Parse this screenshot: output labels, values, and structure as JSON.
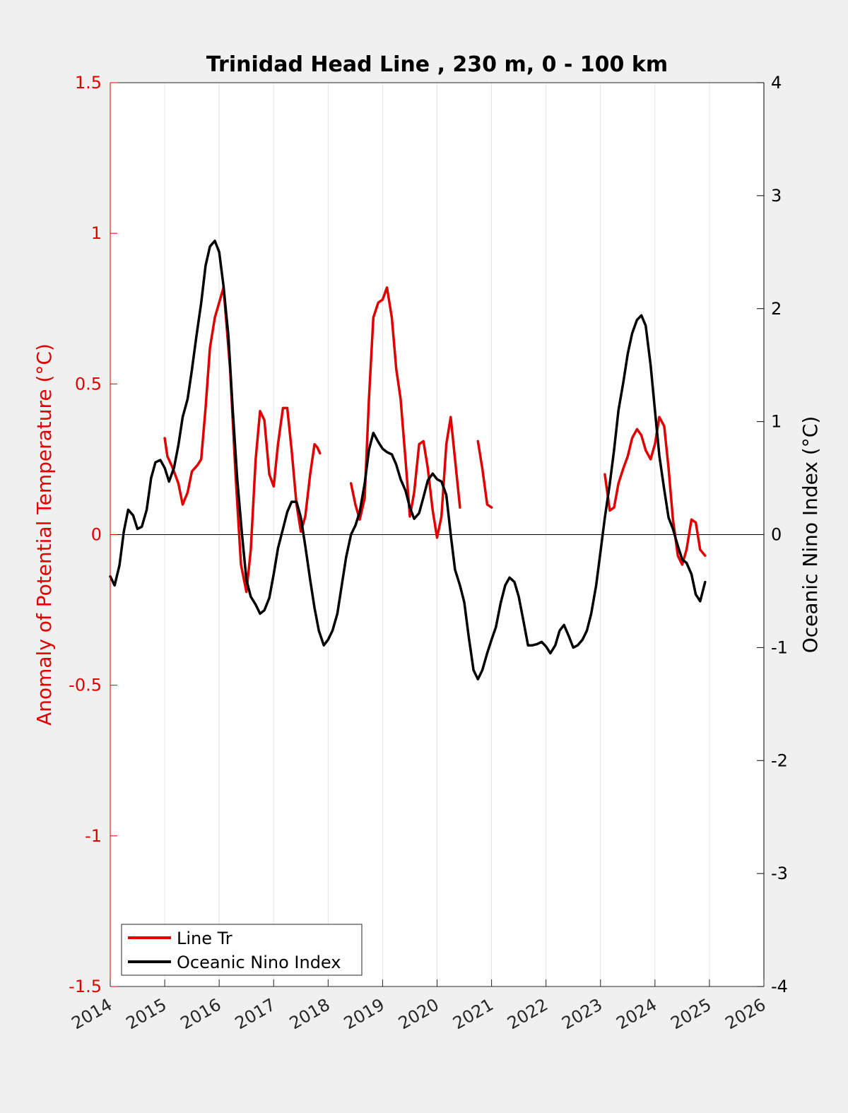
{
  "chart_data": {
    "type": "line",
    "title": "Trinidad Head Line , 230 m, 0 - 100 km",
    "xlabel": "",
    "ylabel": "Anomaly of Potential Temperature (°C)",
    "ylabel_right": "Oceanic Nino Index (°C)",
    "xlim": [
      2014,
      2026
    ],
    "ylim": [
      -1.5,
      1.5
    ],
    "ylim_right": [
      -4,
      4
    ],
    "xticks": [
      "2014",
      "2015",
      "2016",
      "2017",
      "2018",
      "2019",
      "2020",
      "2021",
      "2022",
      "2023",
      "2024",
      "2025",
      "2026"
    ],
    "yticks_left": [
      "-1.5",
      "-1",
      "-0.5",
      "0",
      "0.5",
      "1",
      "1.5"
    ],
    "yticks_right": [
      "-4",
      "-3",
      "-2",
      "-1",
      "0",
      "1",
      "2",
      "3",
      "4"
    ],
    "grid": "vertical",
    "legend": {
      "position": "bottom-left",
      "entries": [
        "Line Tr",
        "Oceanic Nino Index"
      ]
    },
    "colors": {
      "line_tr": "#e00000",
      "oni": "#000000",
      "left_axis": "#e00000",
      "right_axis": "#000000"
    },
    "series": [
      {
        "name": "Line Tr",
        "axis": "left",
        "segments": [
          [
            [
              2015.0,
              0.32
            ],
            [
              2015.05,
              0.26
            ],
            [
              2015.15,
              0.22
            ],
            [
              2015.25,
              0.17
            ],
            [
              2015.33,
              0.1
            ],
            [
              2015.42,
              0.14
            ],
            [
              2015.5,
              0.21
            ],
            [
              2015.6,
              0.23
            ],
            [
              2015.67,
              0.25
            ],
            [
              2015.75,
              0.42
            ],
            [
              2015.83,
              0.62
            ],
            [
              2015.92,
              0.72
            ],
            [
              2016.08,
              0.82
            ],
            [
              2016.2,
              0.55
            ],
            [
              2016.3,
              0.2
            ],
            [
              2016.4,
              -0.1
            ],
            [
              2016.5,
              -0.19
            ],
            [
              2016.58,
              -0.05
            ],
            [
              2016.67,
              0.25
            ],
            [
              2016.75,
              0.41
            ],
            [
              2016.83,
              0.38
            ],
            [
              2016.92,
              0.2
            ],
            [
              2017.0,
              0.16
            ],
            [
              2017.08,
              0.3
            ],
            [
              2017.17,
              0.42
            ],
            [
              2017.25,
              0.42
            ],
            [
              2017.33,
              0.28
            ],
            [
              2017.42,
              0.1
            ],
            [
              2017.5,
              0.01
            ],
            [
              2017.58,
              0.06
            ],
            [
              2017.67,
              0.2
            ],
            [
              2017.75,
              0.3
            ],
            [
              2017.8,
              0.29
            ],
            [
              2017.85,
              0.27
            ]
          ],
          [
            [
              2018.42,
              0.17
            ],
            [
              2018.5,
              0.1
            ],
            [
              2018.58,
              0.05
            ],
            [
              2018.67,
              0.12
            ],
            [
              2018.75,
              0.45
            ],
            [
              2018.83,
              0.72
            ],
            [
              2018.92,
              0.77
            ],
            [
              2019.0,
              0.78
            ],
            [
              2019.08,
              0.82
            ],
            [
              2019.17,
              0.72
            ],
            [
              2019.25,
              0.55
            ],
            [
              2019.33,
              0.45
            ],
            [
              2019.42,
              0.25
            ],
            [
              2019.5,
              0.06
            ],
            [
              2019.58,
              0.14
            ],
            [
              2019.67,
              0.3
            ],
            [
              2019.75,
              0.31
            ],
            [
              2019.83,
              0.22
            ],
            [
              2019.92,
              0.08
            ],
            [
              2020.0,
              -0.01
            ],
            [
              2020.08,
              0.06
            ],
            [
              2020.17,
              0.3
            ],
            [
              2020.25,
              0.39
            ],
            [
              2020.33,
              0.25
            ],
            [
              2020.42,
              0.09
            ]
          ],
          [
            [
              2020.75,
              0.31
            ],
            [
              2020.83,
              0.22
            ],
            [
              2020.92,
              0.1
            ],
            [
              2021.0,
              0.09
            ]
          ],
          [
            [
              2023.08,
              0.2
            ],
            [
              2023.17,
              0.08
            ],
            [
              2023.25,
              0.09
            ],
            [
              2023.33,
              0.17
            ],
            [
              2023.42,
              0.22
            ],
            [
              2023.5,
              0.26
            ],
            [
              2023.58,
              0.32
            ],
            [
              2023.67,
              0.35
            ],
            [
              2023.75,
              0.33
            ],
            [
              2023.83,
              0.28
            ],
            [
              2023.92,
              0.25
            ],
            [
              2024.0,
              0.3
            ],
            [
              2024.08,
              0.39
            ],
            [
              2024.17,
              0.36
            ],
            [
              2024.25,
              0.22
            ],
            [
              2024.33,
              0.05
            ],
            [
              2024.42,
              -0.07
            ],
            [
              2024.5,
              -0.1
            ],
            [
              2024.58,
              -0.05
            ],
            [
              2024.67,
              0.05
            ],
            [
              2024.75,
              0.04
            ],
            [
              2024.83,
              -0.05
            ],
            [
              2024.92,
              -0.07
            ]
          ]
        ]
      },
      {
        "name": "Oceanic Nino Index",
        "axis": "right",
        "segments": [
          [
            [
              2014.0,
              -0.37
            ],
            [
              2014.08,
              -0.45
            ],
            [
              2014.17,
              -0.27
            ],
            [
              2014.25,
              0.03
            ],
            [
              2014.33,
              0.22
            ],
            [
              2014.42,
              0.17
            ],
            [
              2014.5,
              0.05
            ],
            [
              2014.58,
              0.07
            ],
            [
              2014.67,
              0.22
            ],
            [
              2014.75,
              0.5
            ],
            [
              2014.83,
              0.64
            ],
            [
              2014.92,
              0.66
            ],
            [
              2015.0,
              0.59
            ],
            [
              2015.08,
              0.47
            ],
            [
              2015.17,
              0.59
            ],
            [
              2015.25,
              0.79
            ],
            [
              2015.33,
              1.04
            ],
            [
              2015.42,
              1.2
            ],
            [
              2015.5,
              1.46
            ],
            [
              2015.58,
              1.75
            ],
            [
              2015.67,
              2.05
            ],
            [
              2015.75,
              2.38
            ],
            [
              2015.83,
              2.55
            ],
            [
              2015.92,
              2.6
            ],
            [
              2016.0,
              2.5
            ],
            [
              2016.08,
              2.2
            ],
            [
              2016.17,
              1.75
            ],
            [
              2016.25,
              1.1
            ],
            [
              2016.33,
              0.5
            ],
            [
              2016.42,
              0.0
            ],
            [
              2016.5,
              -0.4
            ],
            [
              2016.58,
              -0.55
            ],
            [
              2016.67,
              -0.62
            ],
            [
              2016.75,
              -0.7
            ],
            [
              2016.83,
              -0.67
            ],
            [
              2016.92,
              -0.56
            ],
            [
              2017.0,
              -0.35
            ],
            [
              2017.08,
              -0.12
            ],
            [
              2017.17,
              0.05
            ],
            [
              2017.25,
              0.2
            ],
            [
              2017.33,
              0.29
            ],
            [
              2017.42,
              0.29
            ],
            [
              2017.5,
              0.15
            ],
            [
              2017.58,
              -0.1
            ],
            [
              2017.67,
              -0.4
            ],
            [
              2017.75,
              -0.65
            ],
            [
              2017.83,
              -0.85
            ],
            [
              2017.92,
              -0.98
            ],
            [
              2018.0,
              -0.93
            ],
            [
              2018.08,
              -0.85
            ],
            [
              2018.17,
              -0.7
            ],
            [
              2018.25,
              -0.45
            ],
            [
              2018.33,
              -0.2
            ],
            [
              2018.42,
              0.0
            ],
            [
              2018.5,
              0.08
            ],
            [
              2018.58,
              0.2
            ],
            [
              2018.67,
              0.45
            ],
            [
              2018.75,
              0.75
            ],
            [
              2018.83,
              0.9
            ],
            [
              2018.92,
              0.82
            ],
            [
              2019.0,
              0.76
            ],
            [
              2019.08,
              0.73
            ],
            [
              2019.17,
              0.71
            ],
            [
              2019.25,
              0.62
            ],
            [
              2019.33,
              0.49
            ],
            [
              2019.42,
              0.39
            ],
            [
              2019.5,
              0.24
            ],
            [
              2019.58,
              0.14
            ],
            [
              2019.67,
              0.19
            ],
            [
              2019.75,
              0.33
            ],
            [
              2019.83,
              0.48
            ],
            [
              2019.92,
              0.54
            ],
            [
              2020.0,
              0.49
            ],
            [
              2020.08,
              0.47
            ],
            [
              2020.17,
              0.35
            ],
            [
              2020.25,
              0.0
            ],
            [
              2020.33,
              -0.31
            ],
            [
              2020.42,
              -0.45
            ],
            [
              2020.5,
              -0.6
            ],
            [
              2020.58,
              -0.9
            ],
            [
              2020.67,
              -1.2
            ],
            [
              2020.75,
              -1.28
            ],
            [
              2020.83,
              -1.2
            ],
            [
              2020.92,
              -1.05
            ],
            [
              2021.0,
              -0.93
            ],
            [
              2021.08,
              -0.82
            ],
            [
              2021.17,
              -0.6
            ],
            [
              2021.25,
              -0.45
            ],
            [
              2021.33,
              -0.38
            ],
            [
              2021.42,
              -0.42
            ],
            [
              2021.5,
              -0.55
            ],
            [
              2021.58,
              -0.75
            ],
            [
              2021.67,
              -0.98
            ],
            [
              2021.75,
              -0.98
            ],
            [
              2021.83,
              -0.97
            ],
            [
              2021.92,
              -0.95
            ],
            [
              2022.0,
              -0.99
            ],
            [
              2022.08,
              -1.05
            ],
            [
              2022.17,
              -0.98
            ],
            [
              2022.25,
              -0.85
            ],
            [
              2022.33,
              -0.8
            ],
            [
              2022.42,
              -0.9
            ],
            [
              2022.5,
              -1.0
            ],
            [
              2022.58,
              -0.98
            ],
            [
              2022.67,
              -0.93
            ],
            [
              2022.75,
              -0.85
            ],
            [
              2022.83,
              -0.7
            ],
            [
              2022.92,
              -0.45
            ],
            [
              2023.0,
              -0.15
            ],
            [
              2023.08,
              0.15
            ],
            [
              2023.17,
              0.45
            ],
            [
              2023.25,
              0.75
            ],
            [
              2023.33,
              1.1
            ],
            [
              2023.42,
              1.35
            ],
            [
              2023.5,
              1.6
            ],
            [
              2023.58,
              1.78
            ],
            [
              2023.67,
              1.9
            ],
            [
              2023.75,
              1.94
            ],
            [
              2023.83,
              1.85
            ],
            [
              2023.92,
              1.5
            ],
            [
              2024.0,
              1.1
            ],
            [
              2024.08,
              0.7
            ],
            [
              2024.17,
              0.4
            ],
            [
              2024.25,
              0.15
            ],
            [
              2024.33,
              0.05
            ],
            [
              2024.42,
              -0.1
            ],
            [
              2024.5,
              -0.22
            ],
            [
              2024.58,
              -0.25
            ],
            [
              2024.67,
              -0.35
            ],
            [
              2024.75,
              -0.53
            ],
            [
              2024.83,
              -0.59
            ],
            [
              2024.92,
              -0.42
            ]
          ]
        ]
      }
    ]
  }
}
